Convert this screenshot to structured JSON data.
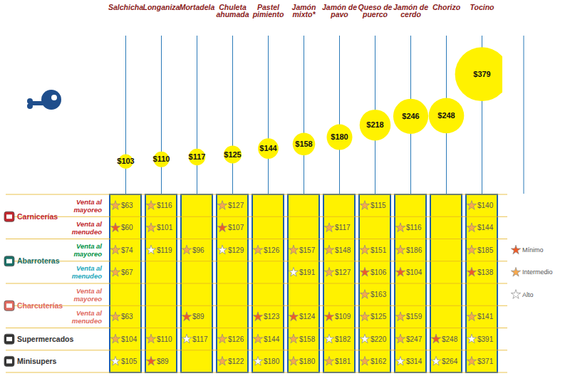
{
  "chart_data": {
    "type": "bubble",
    "categories": [
      "Salchicha",
      "Longaniza",
      "Mortadela",
      "Chuleta ahumada",
      "Pastel pimiento",
      "Jamón mixto*",
      "Jamón de pavo",
      "Queso de puerco",
      "Jamón de cerdo",
      "Chorizo",
      "Tocino"
    ],
    "values": [
      103,
      110,
      117,
      125,
      144,
      158,
      180,
      218,
      246,
      248,
      379
    ],
    "value_labels": [
      "$103",
      "$110",
      "$117",
      "$125",
      "$144",
      "$158",
      "$180",
      "$218",
      "$246",
      "$248",
      "$379"
    ],
    "color": "#fff200",
    "ylim": [
      0,
      500
    ],
    "tick_labels": false,
    "data_labels": true
  },
  "table": {
    "legend": [
      {
        "name": "Mínimo",
        "color": "#f15a24"
      },
      {
        "name": "Intermedio",
        "color": "#f9a94b"
      },
      {
        "name": "Alto",
        "color": "#ffffff"
      }
    ],
    "groups": [
      {
        "name": "Carnicerías",
        "color": "#c1272d",
        "rows": [
          {
            "name": "Venta al mayoreo",
            "color": "#c1272d",
            "cells": [
              {
                "text": "$63",
                "level": "Intermedio"
              },
              {
                "text": "$116",
                "level": "Intermedio"
              },
              null,
              {
                "text": "$127",
                "level": "Intermedio"
              },
              null,
              null,
              null,
              {
                "text": "$115",
                "level": "Intermedio"
              },
              null,
              null,
              {
                "text": "$140",
                "level": "Intermedio"
              }
            ]
          },
          {
            "name": "Venta al menudeo",
            "color": "#c1272d",
            "cells": [
              {
                "text": "$60",
                "level": "Mínimo"
              },
              {
                "text": "$101",
                "level": "Intermedio"
              },
              null,
              {
                "text": "$107",
                "level": "Mínimo"
              },
              null,
              null,
              {
                "text": "$117",
                "level": "Intermedio"
              },
              null,
              {
                "text": "$116",
                "level": "Intermedio"
              },
              null,
              {
                "text": "$144",
                "level": "Intermedio"
              }
            ]
          }
        ]
      },
      {
        "name": "Abarroteras",
        "color": "#1a6f66",
        "rows": [
          {
            "name": "Venta al mayoreo",
            "color": "#009245",
            "cells": [
              {
                "text": "$74",
                "level": "Intermedio"
              },
              {
                "text": "$119",
                "level": "Alto"
              },
              {
                "text": "$96",
                "level": "Intermedio"
              },
              {
                "text": "$129",
                "level": "Alto"
              },
              {
                "text": "$126",
                "level": "Intermedio"
              },
              {
                "text": "$157",
                "level": "Intermedio"
              },
              {
                "text": "$148",
                "level": "Intermedio"
              },
              {
                "text": "$151",
                "level": "Intermedio"
              },
              {
                "text": "$186",
                "level": "Intermedio"
              },
              null,
              {
                "text": "$185",
                "level": "Intermedio"
              }
            ]
          },
          {
            "name": "Venta al menudeo",
            "color": "#1ba7bb",
            "cells": [
              {
                "text": "$67",
                "level": "Intermedio"
              },
              null,
              null,
              null,
              null,
              {
                "text": "$191",
                "level": "Alto"
              },
              {
                "text": "$127",
                "level": "Intermedio"
              },
              {
                "text": "$106",
                "level": "Mínimo"
              },
              {
                "text": "$104",
                "level": "Mínimo"
              },
              null,
              {
                "text": "$138",
                "level": "Mínimo"
              }
            ]
          }
        ]
      },
      {
        "name": "Charcuterías",
        "color": "#e06a5f",
        "rows": [
          {
            "name": "Venta al mayoreo",
            "color": "#e06a5f",
            "cells": [
              null,
              null,
              null,
              null,
              null,
              null,
              null,
              {
                "text": "$163",
                "level": "Intermedio"
              },
              null,
              null,
              null
            ]
          },
          {
            "name": "Venta al menudeo",
            "color": "#e06a5f",
            "cells": [
              {
                "text": "$63",
                "level": "Intermedio"
              },
              null,
              {
                "text": "$89",
                "level": "Mínimo"
              },
              null,
              {
                "text": "$123",
                "level": "Mínimo"
              },
              {
                "text": "$124",
                "level": "Mínimo"
              },
              {
                "text": "$109",
                "level": "Mínimo"
              },
              {
                "text": "$125",
                "level": "Intermedio"
              },
              {
                "text": "$159",
                "level": "Intermedio"
              },
              null,
              {
                "text": "$141",
                "level": "Intermedio"
              }
            ]
          }
        ]
      },
      {
        "name": "Supermercados",
        "color": "#333333",
        "rows": [
          {
            "cells": [
              {
                "text": "$104",
                "level": "Intermedio"
              },
              {
                "text": "$110",
                "level": "Intermedio"
              },
              {
                "text": "$117",
                "level": "Alto"
              },
              {
                "text": "$126",
                "level": "Intermedio"
              },
              {
                "text": "$144",
                "level": "Intermedio"
              },
              {
                "text": "$158",
                "level": "Intermedio"
              },
              {
                "text": "$182",
                "level": "Alto"
              },
              {
                "text": "$220",
                "level": "Alto"
              },
              {
                "text": "$247",
                "level": "Intermedio"
              },
              {
                "text": "$248",
                "level": "Mínimo"
              },
              {
                "text": "$391",
                "level": "Alto"
              }
            ]
          }
        ]
      },
      {
        "name": "Minisupers",
        "color": "#333333",
        "rows": [
          {
            "cells": [
              {
                "text": "$105",
                "level": "Alto"
              },
              {
                "text": "$89",
                "level": "Mínimo"
              },
              null,
              {
                "text": "$122",
                "level": "Intermedio"
              },
              {
                "text": "$180",
                "level": "Alto"
              },
              {
                "text": "$180",
                "level": "Intermedio"
              },
              {
                "text": "$181",
                "level": "Intermedio"
              },
              {
                "text": "$162",
                "level": "Intermedio"
              },
              {
                "text": "$314",
                "level": "Alto"
              },
              {
                "text": "$264",
                "level": "Alto"
              },
              {
                "text": "$371",
                "level": "Intermedio"
              }
            ]
          }
        ]
      }
    ]
  }
}
